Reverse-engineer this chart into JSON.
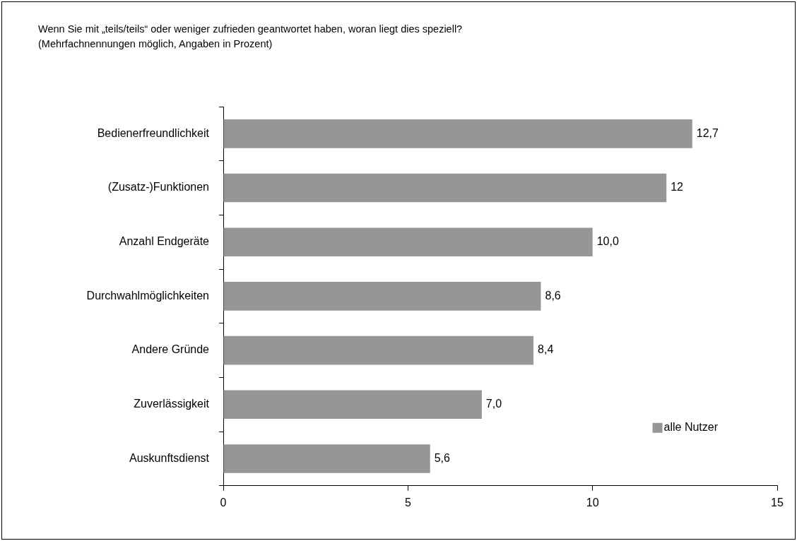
{
  "chart_data": {
    "type": "bar",
    "orientation": "horizontal",
    "title": "Wenn Sie mit „teils/teils“ oder weniger zufrieden geantwortet haben, woran liegt dies speziell?",
    "subtitle": "(Mehrfachnennungen möglich, Angaben in Prozent)",
    "categories": [
      "Bedienerfreundlichkeit",
      "(Zusatz-)Funktionen",
      "Anzahl Endgeräte",
      "Durchwahlmöglichkeiten",
      "Andere Gründe",
      "Zuverlässigkeit",
      "Auskunftsdienst"
    ],
    "series": [
      {
        "name": "alle Nutzer",
        "color": "#969696",
        "values": [
          12.7,
          12,
          10.0,
          8.6,
          8.4,
          7.0,
          5.6
        ],
        "value_labels": [
          "12,7",
          "12",
          "10,0",
          "8,6",
          "8,4",
          "7,0",
          "5,6"
        ]
      }
    ],
    "xlim": [
      0,
      15
    ],
    "xticks": [
      0,
      5,
      10,
      15
    ],
    "grid": false,
    "legend": "bottom right"
  }
}
